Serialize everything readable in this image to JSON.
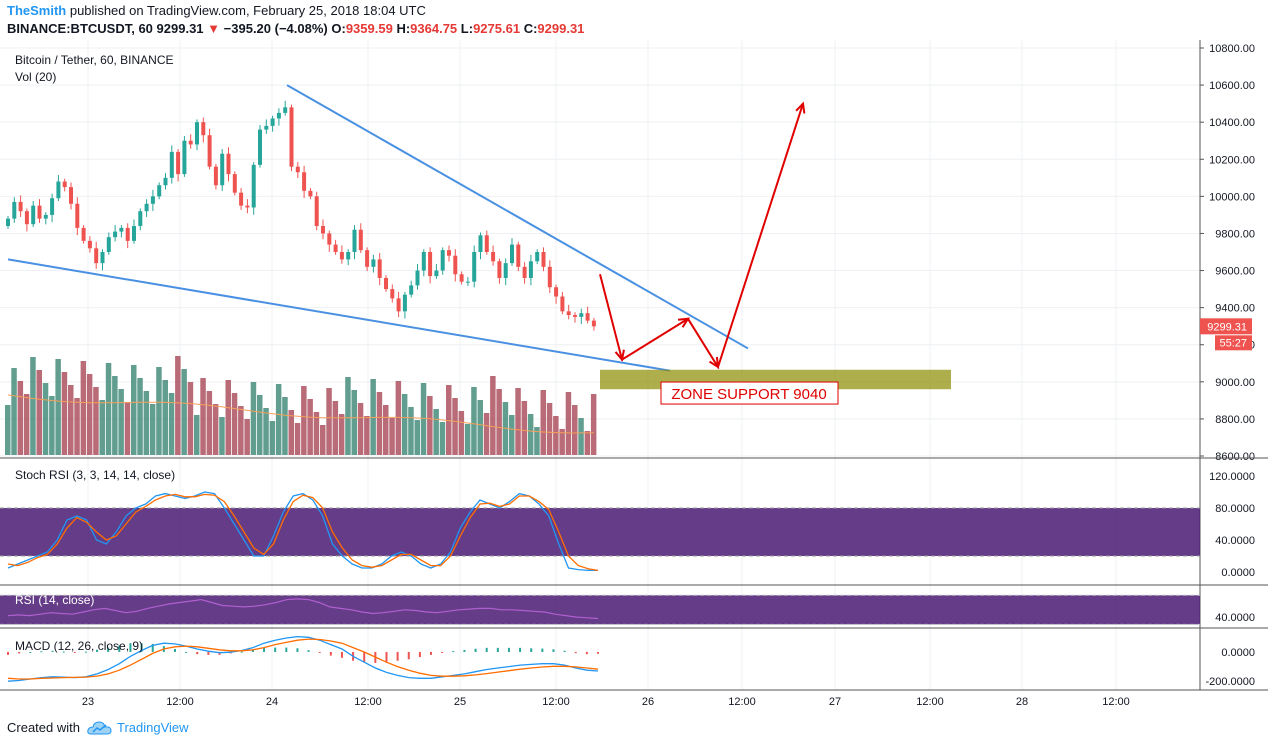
{
  "header": {
    "author": "TheSmith",
    "published_text": " published on TradingView.com, February 25, 2018 18:04 UTC",
    "symbol": "BINANCE:BTCUSDT, 60",
    "price": "9299.31",
    "change": "−395.20 (−4.08%)",
    "o_label": "O:",
    "o_value": "9359.59",
    "h_label": "H:",
    "h_value": "9364.75",
    "l_label": "L:",
    "l_value": "9275.61",
    "c_label": "C:",
    "c_value": "9299.31"
  },
  "colors": {
    "up": "#26a69a",
    "down": "#ef5350",
    "trendline": "#4a90e2",
    "arrow": "#e00000",
    "zone": "#8b8b00",
    "stoch_band": "#4a1a72",
    "rsi_band": "#4a1a72",
    "brand": "#2196f3"
  },
  "footer": {
    "created_label": "Created with",
    "brand": "TradingView"
  },
  "chart_data": [
    {
      "type": "candlestick",
      "title": "Bitcoin / Tether, 60, BINANCE",
      "subtitle": "Vol (20)",
      "ylim": [
        8600,
        10800
      ],
      "y_ticks": [
        "10800.00",
        "10600.00",
        "10400.00",
        "10200.00",
        "10000.00",
        "9800.00",
        "9600.00",
        "9400.00",
        "9200.00",
        "9000.00",
        "8800.00",
        "8600.00"
      ],
      "x_ticks": [
        "23",
        "12:00",
        "24",
        "12:00",
        "25",
        "12:00",
        "26",
        "12:00",
        "27",
        "12:00",
        "28",
        "12:00"
      ],
      "last_price_label": "9299.31",
      "countdown_label": "55:27",
      "close": [
        9880,
        9970,
        9920,
        9850,
        9950,
        9880,
        9900,
        9990,
        10080,
        10050,
        9960,
        9830,
        9760,
        9720,
        9640,
        9700,
        9780,
        9810,
        9830,
        9760,
        9840,
        9920,
        9960,
        10000,
        10060,
        10100,
        10240,
        10120,
        10300,
        10280,
        10400,
        10330,
        10160,
        10060,
        10230,
        10120,
        10020,
        9950,
        9940,
        10170,
        10360,
        10380,
        10420,
        10450,
        10480,
        10160,
        10130,
        10030,
        10000,
        9840,
        9800,
        9740,
        9700,
        9660,
        9700,
        9820,
        9710,
        9620,
        9660,
        9560,
        9500,
        9450,
        9380,
        9470,
        9520,
        9600,
        9700,
        9570,
        9600,
        9710,
        9680,
        9580,
        9540,
        9540,
        9700,
        9790,
        9700,
        9650,
        9560,
        9640,
        9740,
        9620,
        9560,
        9650,
        9700,
        9620,
        9510,
        9460,
        9380,
        9360,
        9350,
        9370,
        9330,
        9299.31
      ],
      "volume_series_name": "Vol (20)",
      "zone_label": "ZONE SUPPORT 9040",
      "zone_price": 9040,
      "projection_path": [
        9580,
        9120,
        9340,
        9080,
        10500
      ]
    },
    {
      "type": "line",
      "title": "Stoch RSI (3, 3, 14, 14, close)",
      "ylim": [
        -10,
        125
      ],
      "y_ticks": [
        "120.0000",
        "80.0000",
        "40.0000",
        "0.0000"
      ],
      "band": [
        20,
        80
      ],
      "series": [
        {
          "values": [
            5,
            10,
            15,
            20,
            25,
            40,
            65,
            70,
            65,
            40,
            35,
            50,
            70,
            80,
            85,
            95,
            98,
            95,
            92,
            95,
            100,
            98,
            80,
            60,
            40,
            20,
            20,
            45,
            75,
            95,
            98,
            90,
            70,
            35,
            20,
            10,
            5,
            5,
            10,
            20,
            25,
            20,
            10,
            5,
            10,
            25,
            55,
            75,
            90,
            85,
            80,
            88,
            98,
            95,
            85,
            70,
            35,
            5,
            3,
            2,
            2
          ]
        },
        {
          "values": [
            10,
            8,
            12,
            18,
            22,
            35,
            55,
            68,
            62,
            50,
            40,
            45,
            60,
            75,
            82,
            90,
            95,
            97,
            94,
            94,
            97,
            96,
            88,
            70,
            50,
            30,
            22,
            35,
            65,
            88,
            96,
            93,
            80,
            50,
            30,
            15,
            8,
            6,
            8,
            15,
            22,
            22,
            15,
            8,
            8,
            20,
            45,
            68,
            85,
            86,
            82,
            85,
            95,
            95,
            88,
            78,
            50,
            20,
            8,
            4,
            2
          ]
        }
      ]
    },
    {
      "type": "line",
      "title": "RSI (14, close)",
      "ylim": [
        25,
        80
      ],
      "y_ticks": [
        "40.0000"
      ],
      "band": [
        30,
        70
      ],
      "series": [
        {
          "values": [
            42,
            43,
            42,
            44,
            46,
            45,
            44,
            47,
            50,
            52,
            49,
            46,
            48,
            52,
            55,
            58,
            60,
            62,
            64,
            60,
            56,
            55,
            54,
            55,
            57,
            60,
            64,
            65,
            64,
            60,
            54,
            52,
            50,
            47,
            45,
            46,
            48,
            50,
            49,
            47,
            46,
            48,
            50,
            51,
            52,
            52,
            50,
            50,
            49,
            48,
            47,
            44,
            42,
            40,
            39,
            38
          ]
        }
      ]
    },
    {
      "type": "bar+line",
      "title": "MACD (12, 26, close, 9)",
      "ylim": [
        -260,
        150
      ],
      "y_ticks": [
        "0.0000",
        "-200.0000"
      ],
      "macd": [
        -200,
        -195,
        -185,
        -175,
        -170,
        -172,
        -175,
        -170,
        -150,
        -120,
        -80,
        -30,
        10,
        45,
        60,
        55,
        40,
        20,
        5,
        -5,
        -2,
        10,
        30,
        60,
        80,
        95,
        105,
        100,
        80,
        50,
        20,
        -30,
        -70,
        -110,
        -140,
        -160,
        -175,
        -180,
        -180,
        -170,
        -160,
        -150,
        -135,
        -120,
        -110,
        -100,
        -90,
        -85,
        -80,
        -80,
        -90,
        -110,
        -125,
        -130
      ],
      "signal": [
        -180,
        -185,
        -185,
        -180,
        -178,
        -175,
        -174,
        -172,
        -165,
        -150,
        -125,
        -90,
        -50,
        -10,
        20,
        35,
        40,
        35,
        25,
        15,
        8,
        8,
        15,
        30,
        50,
        65,
        80,
        88,
        85,
        75,
        60,
        30,
        0,
        -35,
        -70,
        -100,
        -125,
        -145,
        -160,
        -166,
        -166,
        -163,
        -157,
        -148,
        -138,
        -128,
        -118,
        -110,
        -103,
        -98,
        -98,
        -102,
        -110,
        -118
      ],
      "histogram": [
        -20,
        -10,
        0,
        5,
        8,
        3,
        -1,
        2,
        15,
        30,
        45,
        60,
        60,
        55,
        40,
        20,
        0,
        -15,
        -20,
        -20,
        -10,
        2,
        15,
        30,
        30,
        30,
        25,
        12,
        -5,
        -25,
        -40,
        -60,
        -70,
        -75,
        -70,
        -60,
        -50,
        -35,
        -20,
        -4,
        6,
        13,
        22,
        28,
        28,
        28,
        28,
        25,
        23,
        18,
        8,
        -8,
        -15,
        -12
      ]
    }
  ]
}
